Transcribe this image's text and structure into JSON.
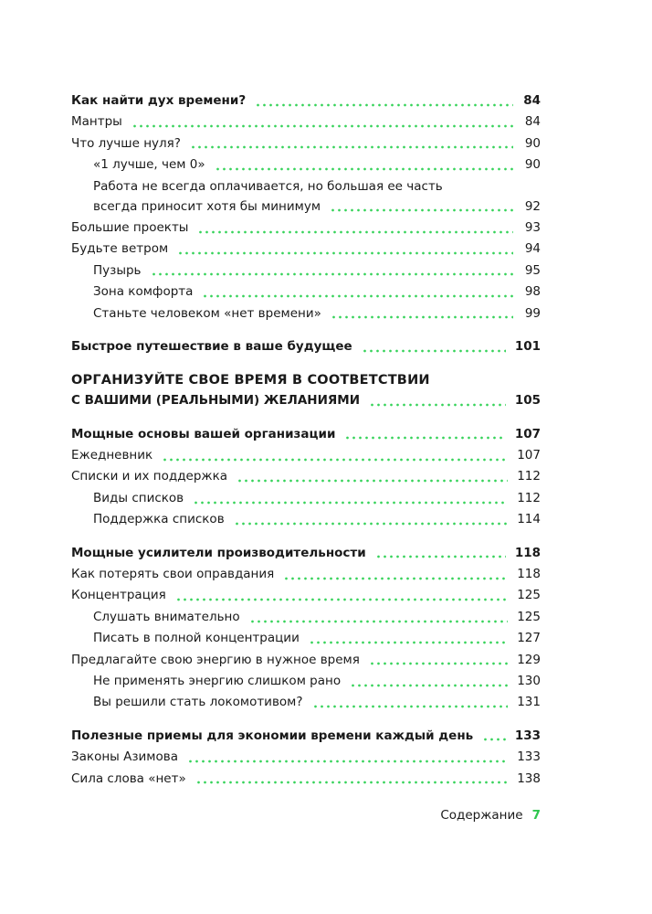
{
  "toc": {
    "sections": [
      {
        "title": "Как найти дух времени?",
        "page": 84,
        "entries": [
          {
            "title": "Мантры",
            "page": 84,
            "subentries": []
          },
          {
            "title": "Что лучше нуля?",
            "page": 90,
            "subentries": [
              {
                "lines": [
                  "«1 лучше, чем 0»"
                ],
                "page": 90
              },
              {
                "lines": [
                  "Работа не всегда оплачивается, но большая ее часть",
                  "всегда приносит хотя бы минимум"
                ],
                "page": 92
              }
            ]
          },
          {
            "title": "Большие проекты",
            "page": 93,
            "subentries": []
          },
          {
            "title": "Будьте ветром",
            "page": 94,
            "subentries": [
              {
                "lines": [
                  "Пузырь"
                ],
                "page": 95
              },
              {
                "lines": [
                  "Зона комфорта"
                ],
                "page": 98
              },
              {
                "lines": [
                  "Станьте человеком «нет времени»"
                ],
                "page": 99
              }
            ]
          }
        ]
      },
      {
        "title": "Быстрое путешествие в ваше будущее",
        "page": 101,
        "entries": []
      }
    ],
    "chapter": {
      "lines": [
        "ОРГАНИЗУЙТЕ СВОЕ ВРЕМЯ В СООТВЕТСТВИИ",
        "С ВАШИМИ (РЕАЛЬНЫМИ) ЖЕЛАНИЯМИ"
      ],
      "page": 105,
      "sections": [
        {
          "title": "Мощные основы вашей организации",
          "page": 107,
          "entries": [
            {
              "title": "Ежедневник",
              "page": 107,
              "subentries": []
            },
            {
              "title": "Списки и их поддержка",
              "page": 112,
              "subentries": [
                {
                  "lines": [
                    "Виды списков"
                  ],
                  "page": 112
                },
                {
                  "lines": [
                    "Поддержка списков"
                  ],
                  "page": 114
                }
              ]
            }
          ]
        },
        {
          "title": "Мощные усилители производительности",
          "page": 118,
          "entries": [
            {
              "title": "Как потерять свои оправдания",
              "page": 118,
              "subentries": []
            },
            {
              "title": "Концентрация",
              "page": 125,
              "subentries": [
                {
                  "lines": [
                    "Слушать внимательно"
                  ],
                  "page": 125
                },
                {
                  "lines": [
                    "Писать в полной концентрации"
                  ],
                  "page": 127
                }
              ]
            },
            {
              "title": "Предлагайте свою энергию в нужное время",
              "page": 129,
              "subentries": [
                {
                  "lines": [
                    "Не применять энергию слишком рано"
                  ],
                  "page": 130
                },
                {
                  "lines": [
                    "Вы решили стать локомотивом?"
                  ],
                  "page": 131
                }
              ]
            }
          ]
        },
        {
          "title": "Полезные приемы для экономии времени каждый день",
          "page": 133,
          "entries": [
            {
              "title": "Законы Азимова",
              "page": 133,
              "subentries": []
            },
            {
              "title": "Сила слова «нет»",
              "page": 138,
              "subentries": []
            }
          ]
        }
      ]
    }
  },
  "footer": {
    "label": "Содержание",
    "page_number": 7
  }
}
